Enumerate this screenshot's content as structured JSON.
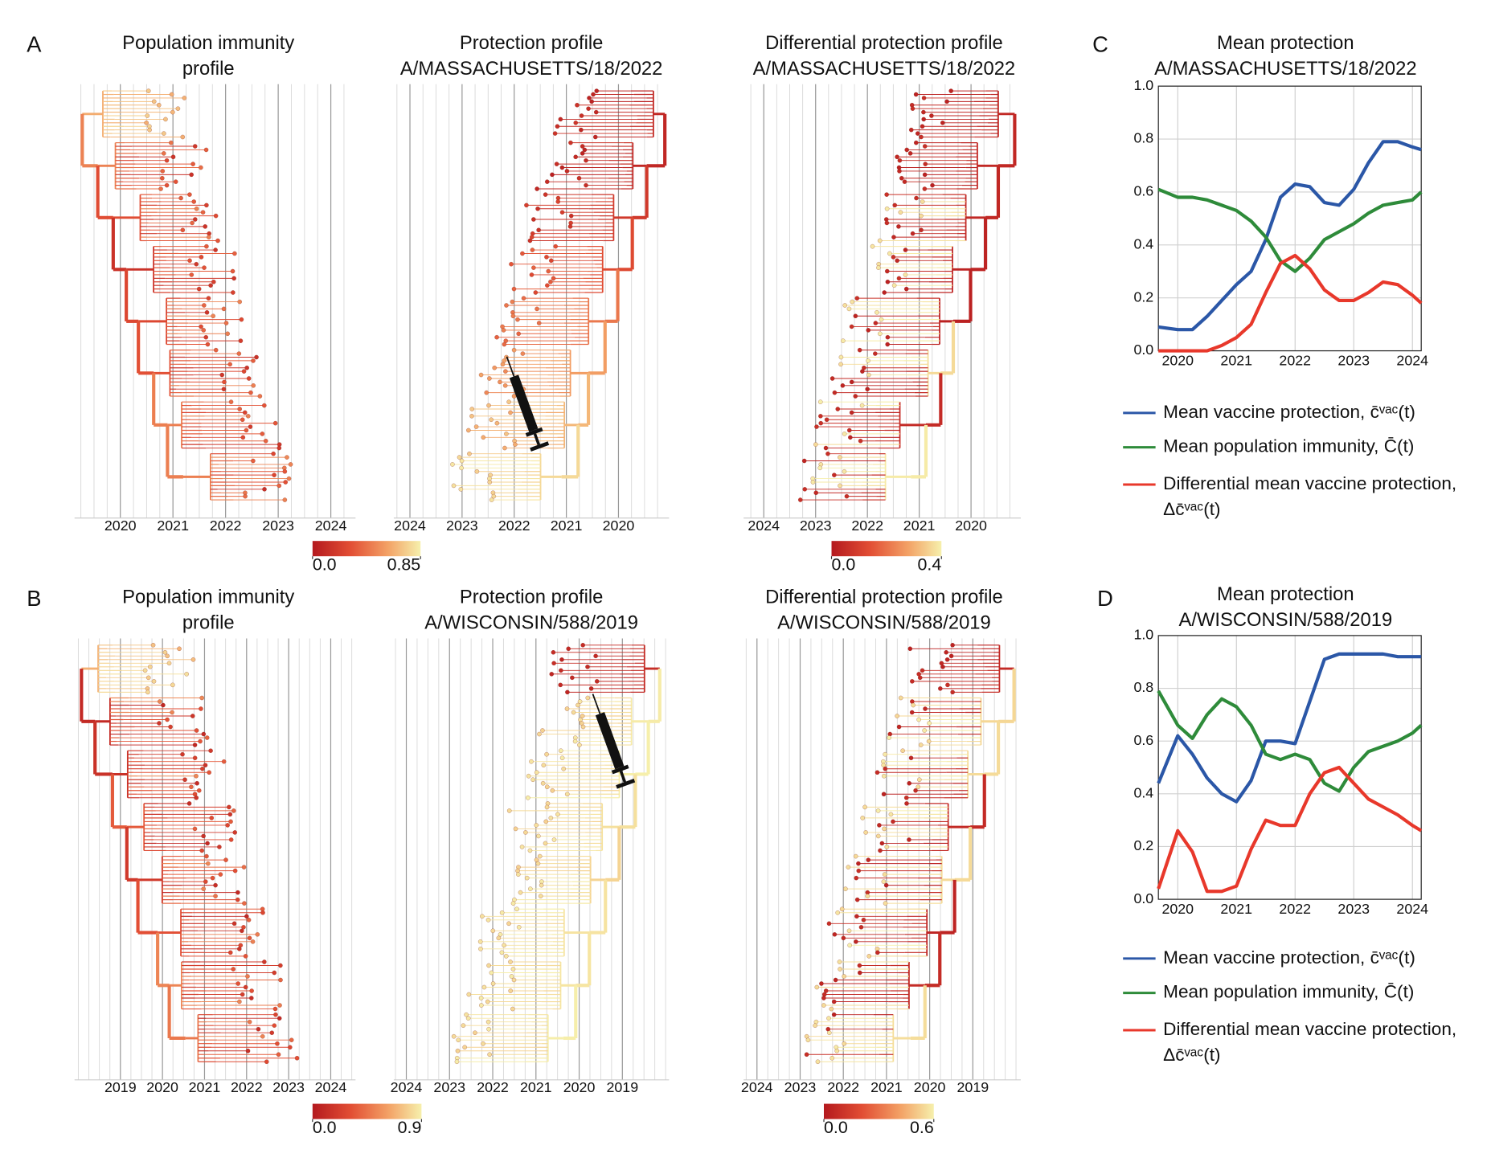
{
  "panel_labels": [
    "A",
    "B",
    "C",
    "D"
  ],
  "chart_data": [
    {
      "type": "tree",
      "title": "Population immunity\nprofile",
      "xlim": [
        2019.13,
        2024.47
      ],
      "xticks": [
        2020,
        2021,
        2022,
        2023,
        2024
      ],
      "colorbar": {
        "lim": [
          0,
          0.85
        ],
        "ticks": [
          {
            "value": 0,
            "label": "0.0"
          },
          0.85
        ]
      }
    },
    {
      "type": "tree",
      "title": "Protection profile\nA/MASSACHUSETTS/18/2022",
      "xlim": [
        2024.31,
        2019.03
      ],
      "xticks": [
        2024,
        2023,
        2022,
        2021,
        2020
      ]
    },
    {
      "type": "tree",
      "title": "Differential protection profile\nA/MASSACHUSETTS/18/2022",
      "xlim": [
        2024.39,
        2019.04
      ],
      "xticks": [
        2024,
        2023,
        2022,
        2021,
        2020
      ],
      "colorbar": {
        "lim": [
          0,
          0.4
        ],
        "ticks": [
          {
            "value": 0,
            "label": "0.0"
          },
          0.4
        ]
      }
    },
    {
      "type": "tree",
      "title": "Population immunity\nprofile",
      "xlim": [
        2017.91,
        2024.59
      ],
      "xticks": [
        2019,
        2020,
        2021,
        2022,
        2023,
        2024
      ],
      "colorbar": {
        "lim": [
          0,
          0.9
        ],
        "ticks": [
          {
            "value": 0,
            "label": "0.0"
          },
          0.9
        ]
      }
    },
    {
      "type": "tree",
      "title": "Protection profile\nA/WISCONSIN/588/2019",
      "xlim": [
        2024.29,
        2017.92
      ],
      "xticks": [
        2024,
        2023,
        2022,
        2021,
        2020,
        2019
      ]
    },
    {
      "type": "tree",
      "title": "Differential protection profile\nA/WISCONSIN/588/2019",
      "xlim": [
        2024.31,
        2017.89
      ],
      "xticks": [
        2024,
        2023,
        2022,
        2021,
        2020,
        2019
      ],
      "colorbar": {
        "lim": [
          0,
          0.6
        ],
        "ticks": [
          {
            "value": 0,
            "label": "0.0"
          },
          0.6
        ]
      }
    },
    {
      "type": "line",
      "title": "Mean protection\nA/MASSACHUSETTS/18/2022",
      "grid": true,
      "xlim": [
        2019.67,
        2024.15
      ],
      "xticks": [
        2020,
        2021,
        2022,
        2023,
        2024
      ],
      "ylim": [
        0,
        1
      ],
      "yticks": [
        {
          "value": 0,
          "label": "0.0"
        },
        0.2,
        0.4,
        0.6,
        0.8,
        {
          "value": 1,
          "label": "1.0"
        }
      ],
      "x": [
        2019.67,
        2020,
        2020.25,
        2020.5,
        2020.75,
        2021,
        2021.25,
        2021.5,
        2021.75,
        2022,
        2022.25,
        2022.5,
        2022.75,
        2023,
        2023.25,
        2023.5,
        2023.75,
        2024,
        2024.15
      ],
      "series": [
        {
          "name": "Mean vaccine protection, c̄ᵛᵃᶜ(t)",
          "color": "#2b57a7",
          "values": [
            0.09,
            0.08,
            0.08,
            0.13,
            0.19,
            0.25,
            0.3,
            0.42,
            0.58,
            0.63,
            0.62,
            0.56,
            0.55,
            0.61,
            0.71,
            0.79,
            0.79,
            0.77,
            0.76
          ]
        },
        {
          "name": "Mean population immunity, C̄(t)",
          "color": "#2e8b3a",
          "values": [
            0.61,
            0.58,
            0.58,
            0.57,
            0.55,
            0.53,
            0.49,
            0.43,
            0.34,
            0.3,
            0.35,
            0.42,
            0.45,
            0.48,
            0.52,
            0.55,
            0.56,
            0.57,
            0.6
          ]
        },
        {
          "name": "Differential mean vaccine protection, Δc̄ᵛᵃᶜ(t)",
          "color": "#e8382b",
          "values": [
            0.0,
            0.0,
            0.0,
            0.0,
            0.02,
            0.05,
            0.1,
            0.22,
            0.33,
            0.36,
            0.31,
            0.23,
            0.19,
            0.19,
            0.22,
            0.26,
            0.25,
            0.21,
            0.18
          ]
        }
      ]
    },
    {
      "type": "line",
      "title": "Mean protection\nA/WISCONSIN/588/2019",
      "grid": true,
      "xlim": [
        2019.67,
        2024.15
      ],
      "xticks": [
        2020,
        2021,
        2022,
        2023,
        2024
      ],
      "ylim": [
        0,
        1
      ],
      "yticks": [
        {
          "value": 0,
          "label": "0.0"
        },
        0.2,
        0.4,
        0.6,
        0.8,
        {
          "value": 1,
          "label": "1.0"
        }
      ],
      "x": [
        2019.67,
        2020,
        2020.25,
        2020.5,
        2020.75,
        2021,
        2021.25,
        2021.5,
        2021.75,
        2022,
        2022.25,
        2022.5,
        2022.75,
        2023,
        2023.25,
        2023.5,
        2023.75,
        2024,
        2024.15
      ],
      "series": [
        {
          "name": "Mean vaccine protection, c̄ᵛᵃᶜ(t)",
          "color": "#2b57a7",
          "values": [
            0.44,
            0.62,
            0.55,
            0.46,
            0.4,
            0.37,
            0.45,
            0.6,
            0.6,
            0.59,
            0.75,
            0.91,
            0.93,
            0.93,
            0.93,
            0.93,
            0.92,
            0.92,
            0.92
          ]
        },
        {
          "name": "Mean population immunity, C̄(t)",
          "color": "#2e8b3a",
          "values": [
            0.79,
            0.66,
            0.61,
            0.7,
            0.76,
            0.73,
            0.66,
            0.55,
            0.53,
            0.55,
            0.53,
            0.44,
            0.41,
            0.5,
            0.56,
            0.58,
            0.6,
            0.63,
            0.66
          ]
        },
        {
          "name": "Differential mean vaccine protection, Δc̄ᵛᵃᶜ(t)",
          "color": "#e8382b",
          "values": [
            0.04,
            0.26,
            0.18,
            0.03,
            0.03,
            0.05,
            0.19,
            0.3,
            0.28,
            0.28,
            0.4,
            0.48,
            0.5,
            0.44,
            0.38,
            0.35,
            0.32,
            0.28,
            0.26
          ]
        }
      ]
    }
  ]
}
